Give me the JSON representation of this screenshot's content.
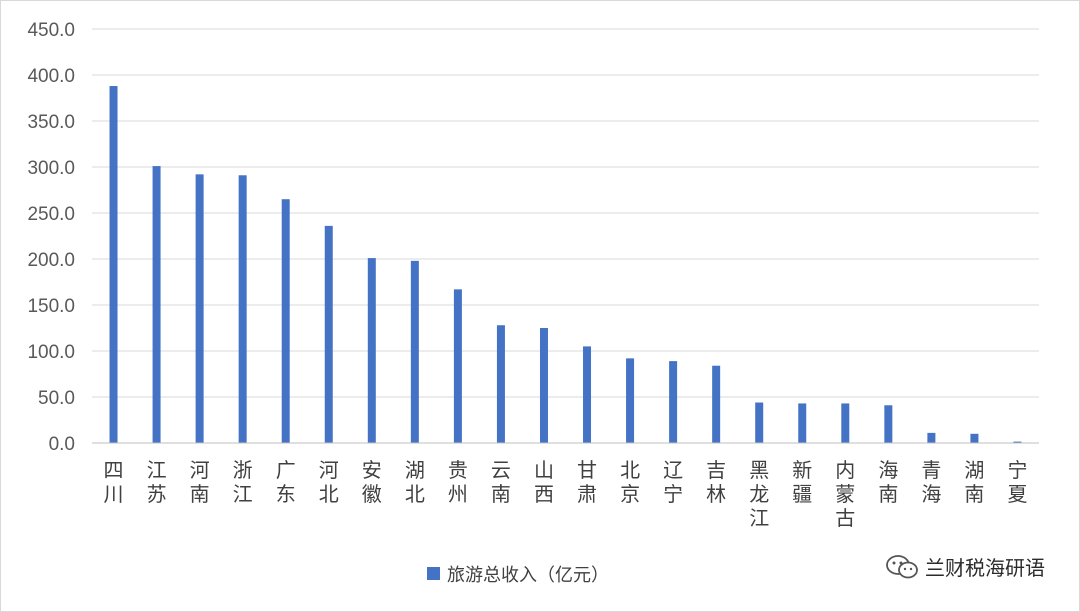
{
  "chart_data": {
    "type": "bar",
    "categories": [
      "四川",
      "江苏",
      "河南",
      "浙江",
      "广东",
      "河北",
      "安徽",
      "湖北",
      "贵州",
      "云南",
      "山西",
      "甘肃",
      "北京",
      "辽宁",
      "吉林",
      "黑龙江",
      "新疆",
      "内蒙古",
      "海南",
      "青海",
      "湖南",
      "宁夏"
    ],
    "series": [
      {
        "name": "旅游总收入（亿元）",
        "values": [
          388.0,
          301.0,
          292.0,
          291.0,
          265.0,
          236.0,
          201.0,
          198.0,
          167.0,
          128.0,
          125.0,
          105.0,
          92.0,
          89.0,
          84.0,
          44.0,
          43.0,
          43.0,
          41.0,
          11.0,
          10.0,
          1.5
        ]
      }
    ],
    "ylim": [
      0,
      450
    ],
    "yticks": [
      "0.0",
      "50.0",
      "100.0",
      "150.0",
      "200.0",
      "250.0",
      "300.0",
      "350.0",
      "400.0",
      "450.0"
    ],
    "grid": true,
    "legend_position": "bottom",
    "colors": {
      "bar": "#4472c4",
      "grid": "#d9d9d9",
      "axis": "#bfbfbf"
    }
  },
  "watermark": {
    "text": "兰财税海研语",
    "icon": "wechat-icon"
  }
}
